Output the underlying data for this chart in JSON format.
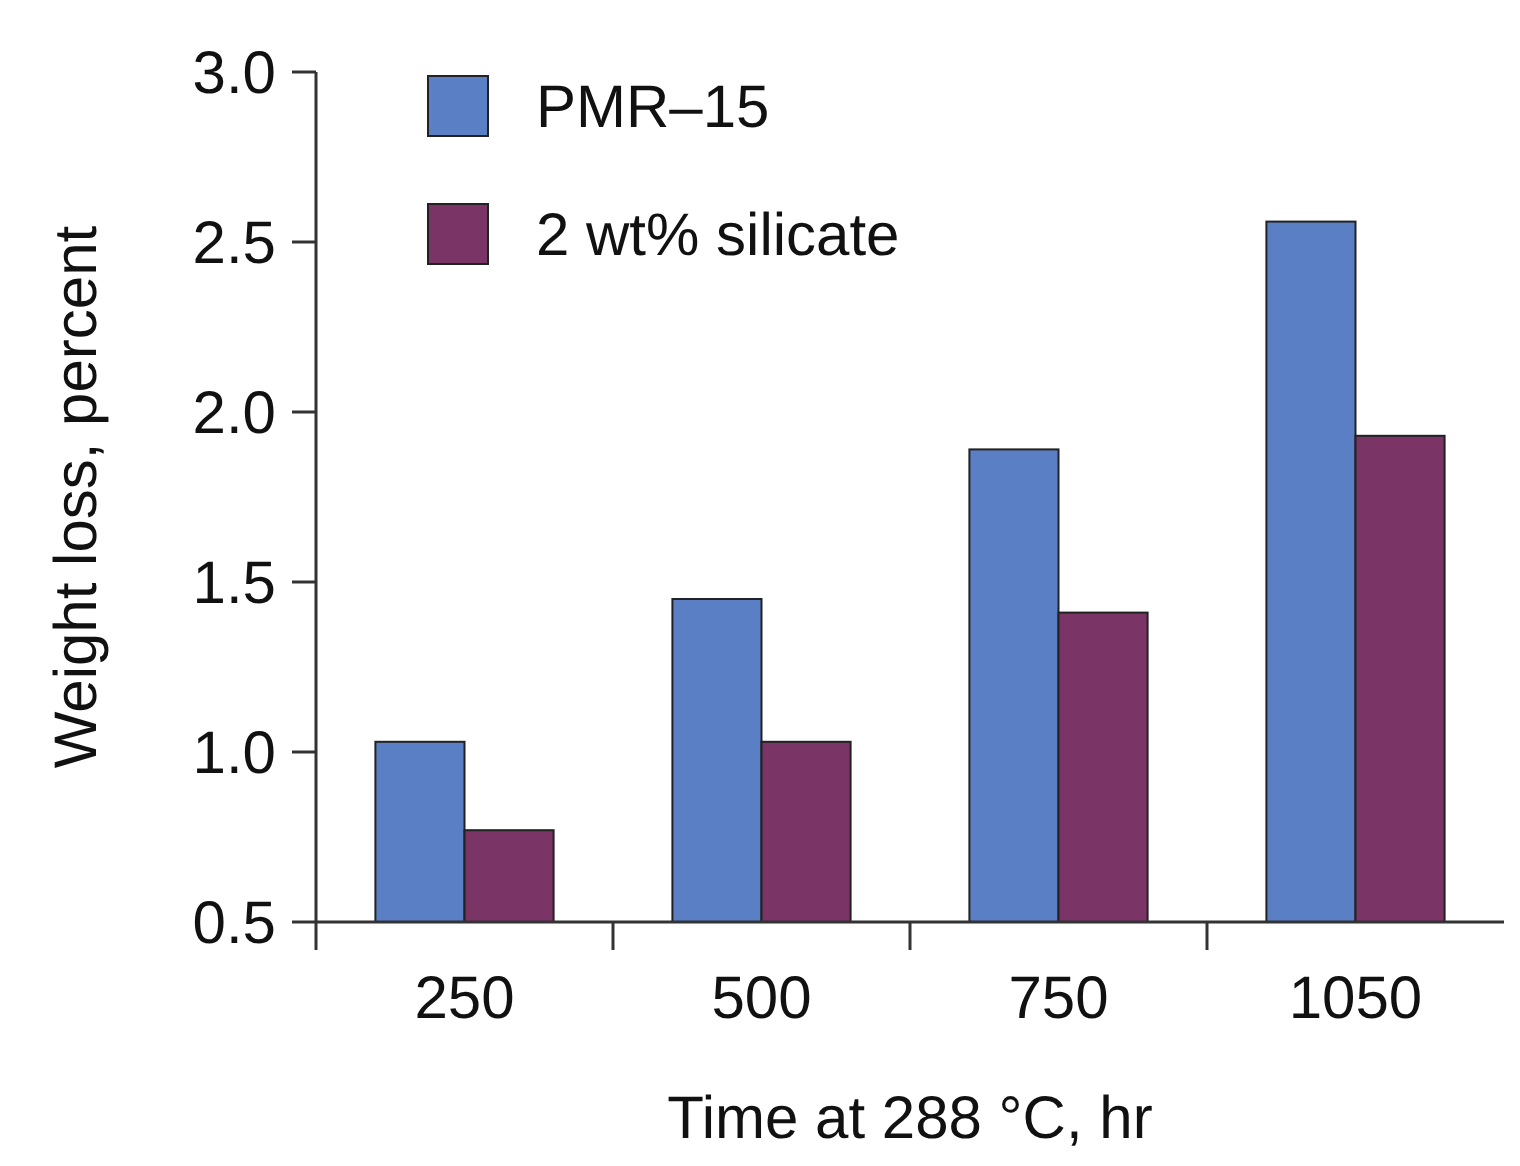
{
  "chart_data": {
    "type": "bar",
    "xlabel": "Time at 288 °C, hr",
    "ylabel": "Weight loss, percent",
    "categories": [
      "250",
      "500",
      "750",
      "1050"
    ],
    "series": [
      {
        "name": "PMR–15",
        "color": "#5b7fc4",
        "values": [
          1.03,
          1.45,
          1.89,
          2.56
        ]
      },
      {
        "name": "2 wt% silicate",
        "color": "#7a3566",
        "values": [
          0.77,
          1.03,
          1.41,
          1.93
        ]
      }
    ],
    "ylim": [
      0.5,
      3.0
    ],
    "yticks": [
      {
        "value": 0.5,
        "label": "0.5"
      },
      {
        "value": 1,
        "label": "1.0"
      },
      {
        "value": 1.5,
        "label": "1.5"
      },
      {
        "value": 2,
        "label": "2.0"
      },
      {
        "value": 2.5,
        "label": "2.5"
      },
      {
        "value": 3,
        "label": "3.0"
      }
    ],
    "grid": false,
    "legend": "top left"
  }
}
